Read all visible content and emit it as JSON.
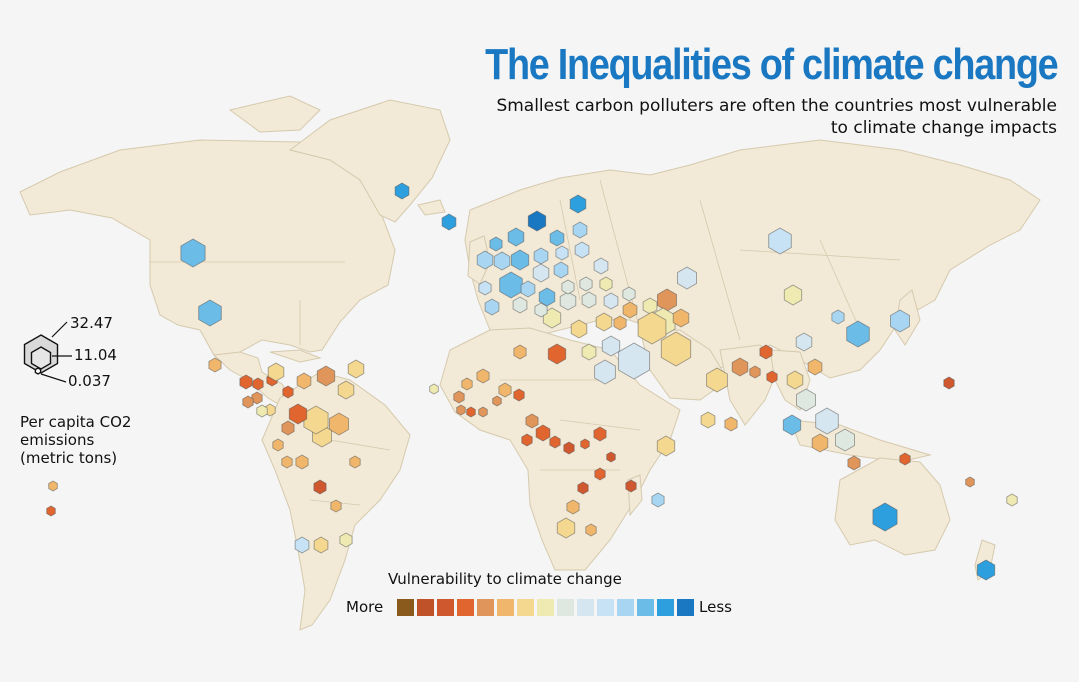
{
  "title": "The Inequalities of climate change",
  "subtitle": {
    "line1": "Smallest carbon polluters are often the countries most vulnerable",
    "line2": "to climate change impacts"
  },
  "size_legend": {
    "values": [
      "32.47",
      "11.04",
      "0.037"
    ],
    "caption": [
      "Per capita CO2",
      "emissions",
      "(metric tons)"
    ]
  },
  "color_legend": {
    "title": "Vulnerability to climate change",
    "more_label": "More",
    "less_label": "Less",
    "colors": [
      "#8a5a1c",
      "#c0522a",
      "#d0582e",
      "#e0652f",
      "#e0955a",
      "#f0b66c",
      "#f4d890",
      "#eeeab2",
      "#dfe8e0",
      "#d6e6f0",
      "#c6e2f4",
      "#a8d6f2",
      "#6cbce8",
      "#2e9fde",
      "#1a78c2"
    ]
  },
  "map_colors": {
    "land": "#f2ead7",
    "border": "#d6c9ad",
    "background": "#f4f5f4"
  }
}
